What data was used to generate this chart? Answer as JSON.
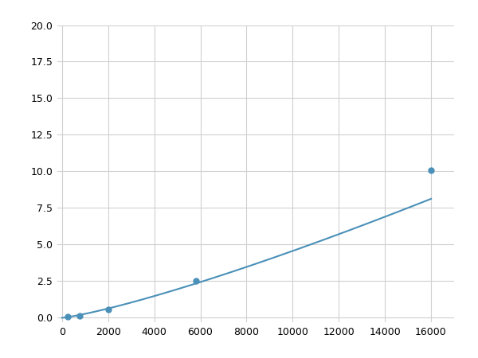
{
  "x": [
    0,
    250,
    500,
    750,
    1000,
    2000,
    5800,
    16000
  ],
  "y": [
    0.05,
    0.08,
    0.12,
    0.15,
    0.18,
    0.55,
    2.5,
    10.1
  ],
  "marker_x": [
    250,
    750,
    2000,
    5800,
    16000
  ],
  "marker_y": [
    0.08,
    0.15,
    0.55,
    2.5,
    10.1
  ],
  "line_color": "#4a90b8",
  "marker_color": "#4a90b8",
  "marker_size": 5,
  "xlim": [
    -200,
    17000
  ],
  "ylim": [
    -0.3,
    20.0
  ],
  "xticks": [
    0,
    2000,
    4000,
    6000,
    8000,
    10000,
    12000,
    14000,
    16000
  ],
  "yticks": [
    0.0,
    2.5,
    5.0,
    7.5,
    10.0,
    12.5,
    15.0,
    17.5,
    20.0
  ],
  "grid": true,
  "background_color": "#ffffff",
  "figure_width": 6.0,
  "figure_height": 4.5,
  "dpi": 100
}
